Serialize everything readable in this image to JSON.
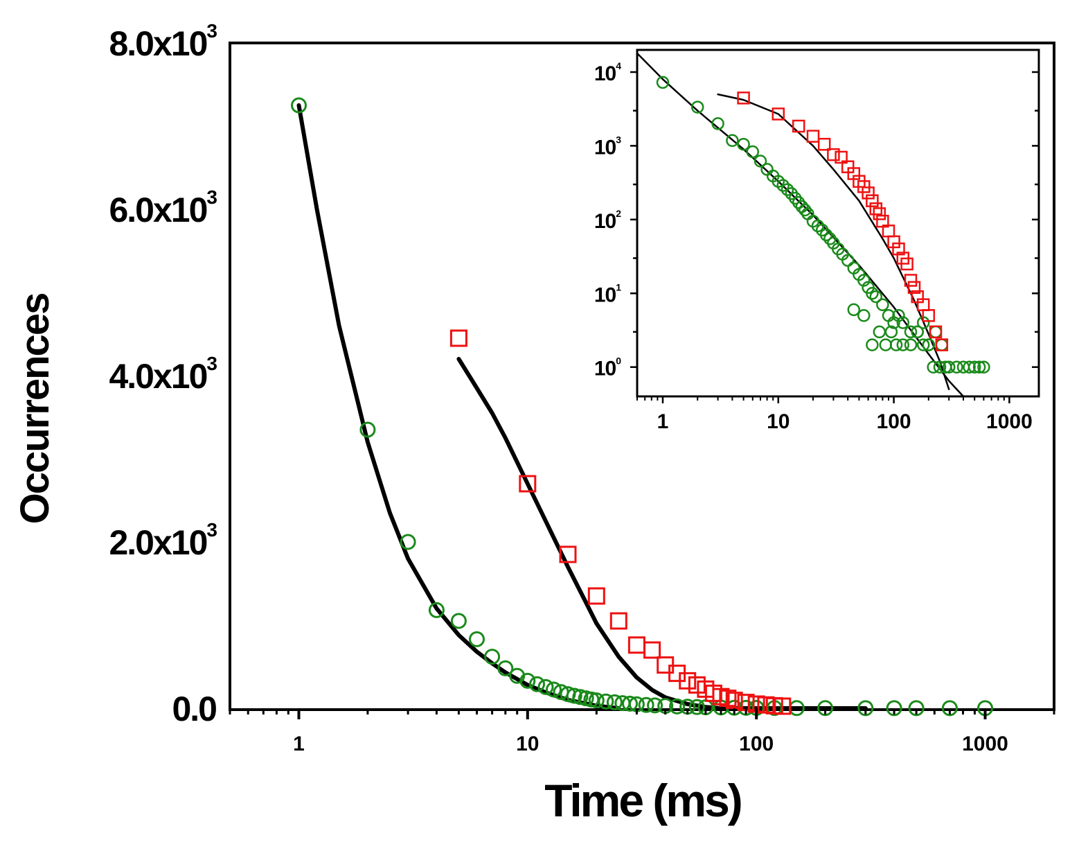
{
  "chart_data": [
    {
      "type": "scatter",
      "name": "main",
      "xscale": "log",
      "xlabel": "Time (ms)",
      "ylabel": "Occurrences",
      "xlim": [
        0.5,
        2000
      ],
      "ylim": [
        0,
        8000
      ],
      "xticks": [
        1,
        10,
        100,
        1000
      ],
      "xtick_labels": [
        "1",
        "10",
        "100",
        "1000"
      ],
      "yticks": [
        0,
        2000,
        4000,
        6000,
        8000
      ],
      "ytick_labels": [
        {
          "mantissa": "0.0",
          "exp": ""
        },
        {
          "mantissa": "2.0x10",
          "exp": "3"
        },
        {
          "mantissa": "4.0x10",
          "exp": "3"
        },
        {
          "mantissa": "6.0x10",
          "exp": "3"
        },
        {
          "mantissa": "8.0x10",
          "exp": "3"
        }
      ],
      "series": [
        {
          "name": "green circles",
          "marker": "circle",
          "color": "#1a8a1a",
          "x": [
            1,
            2,
            3,
            4,
            5,
            6,
            7,
            8,
            9,
            10,
            11,
            12,
            13,
            14,
            15,
            16,
            17,
            18,
            19,
            20,
            22,
            24,
            26,
            28,
            30,
            33,
            36,
            40,
            45,
            50,
            55,
            60,
            70,
            80,
            90,
            100,
            120,
            150,
            200,
            300,
            400,
            500,
            700,
            1000
          ],
          "y": [
            7250,
            3350,
            2000,
            1180,
            1050,
            830,
            620,
            480,
            390,
            330,
            290,
            255,
            225,
            195,
            170,
            150,
            135,
            120,
            105,
            95,
            82,
            72,
            62,
            55,
            48,
            40,
            34,
            28,
            22,
            18,
            15,
            12,
            9,
            7,
            5,
            4,
            3,
            2,
            2,
            1,
            1,
            1,
            1,
            1
          ]
        },
        {
          "name": "red squares",
          "marker": "square",
          "color": "#ee1111",
          "x": [
            5,
            10,
            15,
            20,
            25,
            30,
            35,
            40,
            45,
            50,
            55,
            60,
            65,
            70,
            75,
            80,
            90,
            100,
            110,
            120,
            130
          ],
          "y": [
            4450,
            2700,
            1850,
            1350,
            1050,
            760,
            700,
            520,
            420,
            330,
            280,
            230,
            180,
            140,
            120,
            95,
            70,
            50,
            40,
            30,
            25
          ]
        }
      ],
      "fits": [
        {
          "name": "fit green",
          "color": "#000000",
          "x": [
            1,
            1.2,
            1.5,
            2,
            2.5,
            3,
            4,
            5,
            6,
            7,
            8,
            10,
            12,
            15,
            20,
            25
          ],
          "y": [
            7250,
            6000,
            4600,
            3200,
            2350,
            1800,
            1200,
            880,
            680,
            540,
            430,
            280,
            190,
            100,
            30,
            0
          ]
        },
        {
          "name": "fit red",
          "color": "#000000",
          "x": [
            5,
            6,
            7,
            8,
            10,
            12,
            15,
            18,
            20,
            25,
            30,
            35,
            40,
            50,
            60,
            70
          ],
          "y": [
            4200,
            3850,
            3550,
            3250,
            2700,
            2250,
            1700,
            1270,
            1020,
            620,
            370,
            220,
            130,
            50,
            15,
            0
          ]
        },
        {
          "name": "baseline",
          "color": "#000000",
          "x": [
            60,
            300
          ],
          "y": [
            0,
            0
          ]
        }
      ]
    },
    {
      "type": "scatter",
      "name": "inset",
      "xscale": "log",
      "yscale": "log",
      "xlim": [
        0.6,
        1800
      ],
      "ylim": [
        0.4,
        20000
      ],
      "xticks": [
        1,
        10,
        100,
        1000
      ],
      "xtick_labels": [
        "1",
        "10",
        "100",
        "1000"
      ],
      "yticks": [
        1,
        10,
        100,
        1000,
        10000
      ],
      "ytick_labels": [
        {
          "mantissa": "10",
          "exp": "0"
        },
        {
          "mantissa": "10",
          "exp": "1"
        },
        {
          "mantissa": "10",
          "exp": "2"
        },
        {
          "mantissa": "10",
          "exp": "3"
        },
        {
          "mantissa": "10",
          "exp": "4"
        }
      ],
      "series": [
        {
          "name": "green circles",
          "marker": "circle",
          "color": "#1a8a1a",
          "x": [
            1,
            2,
            3,
            4,
            5,
            6,
            7,
            8,
            9,
            10,
            11,
            12,
            13,
            14,
            15,
            16,
            17,
            18,
            20,
            22,
            24,
            26,
            28,
            30,
            33,
            36,
            40,
            45,
            50,
            55,
            60,
            65,
            70,
            80,
            90,
            100,
            110,
            120,
            140,
            160,
            180,
            200,
            230,
            260,
            45,
            55,
            65,
            75,
            85,
            95,
            105,
            120,
            140,
            160,
            180,
            200,
            220,
            250,
            280,
            300,
            350,
            400,
            450,
            500,
            550,
            600
          ],
          "y": [
            7250,
            3350,
            2000,
            1180,
            1050,
            830,
            620,
            480,
            390,
            330,
            290,
            255,
            225,
            195,
            170,
            150,
            135,
            120,
            95,
            82,
            72,
            62,
            55,
            48,
            40,
            34,
            28,
            22,
            18,
            15,
            12,
            10,
            9,
            7,
            5,
            4,
            5,
            4,
            3,
            3,
            4,
            2,
            3,
            2,
            6,
            5,
            2,
            3,
            2,
            3,
            2,
            2,
            2,
            3,
            2,
            2,
            1,
            1,
            1,
            1,
            1,
            1,
            1,
            1,
            1,
            1
          ]
        },
        {
          "name": "red squares",
          "marker": "square",
          "color": "#ee1111",
          "x": [
            5,
            10,
            15,
            20,
            25,
            30,
            35,
            40,
            45,
            50,
            55,
            60,
            65,
            70,
            75,
            80,
            90,
            100,
            110,
            120,
            130,
            140,
            150,
            160,
            180,
            200,
            230,
            260
          ],
          "y": [
            4450,
            2700,
            1850,
            1350,
            1050,
            760,
            700,
            520,
            420,
            330,
            280,
            230,
            180,
            140,
            120,
            95,
            70,
            50,
            40,
            30,
            25,
            15,
            12,
            9,
            7,
            5,
            3,
            2
          ]
        }
      ],
      "fits": [
        {
          "name": "fit green",
          "color": "#000000",
          "x": [
            0.6,
            1,
            2,
            5,
            10,
            20,
            50,
            100,
            200,
            300,
            400
          ],
          "y": [
            18000,
            8000,
            3000,
            900,
            330,
            115,
            24,
            6.5,
            1.5,
            0.65,
            0.4
          ]
        },
        {
          "name": "fit red",
          "color": "#000000",
          "x": [
            3,
            5,
            10,
            20,
            30,
            50,
            80,
            100,
            150,
            200,
            250,
            300
          ],
          "y": [
            5000,
            4200,
            2700,
            1000,
            480,
            180,
            55,
            30,
            8,
            2.8,
            1.2,
            0.5
          ]
        }
      ]
    }
  ]
}
